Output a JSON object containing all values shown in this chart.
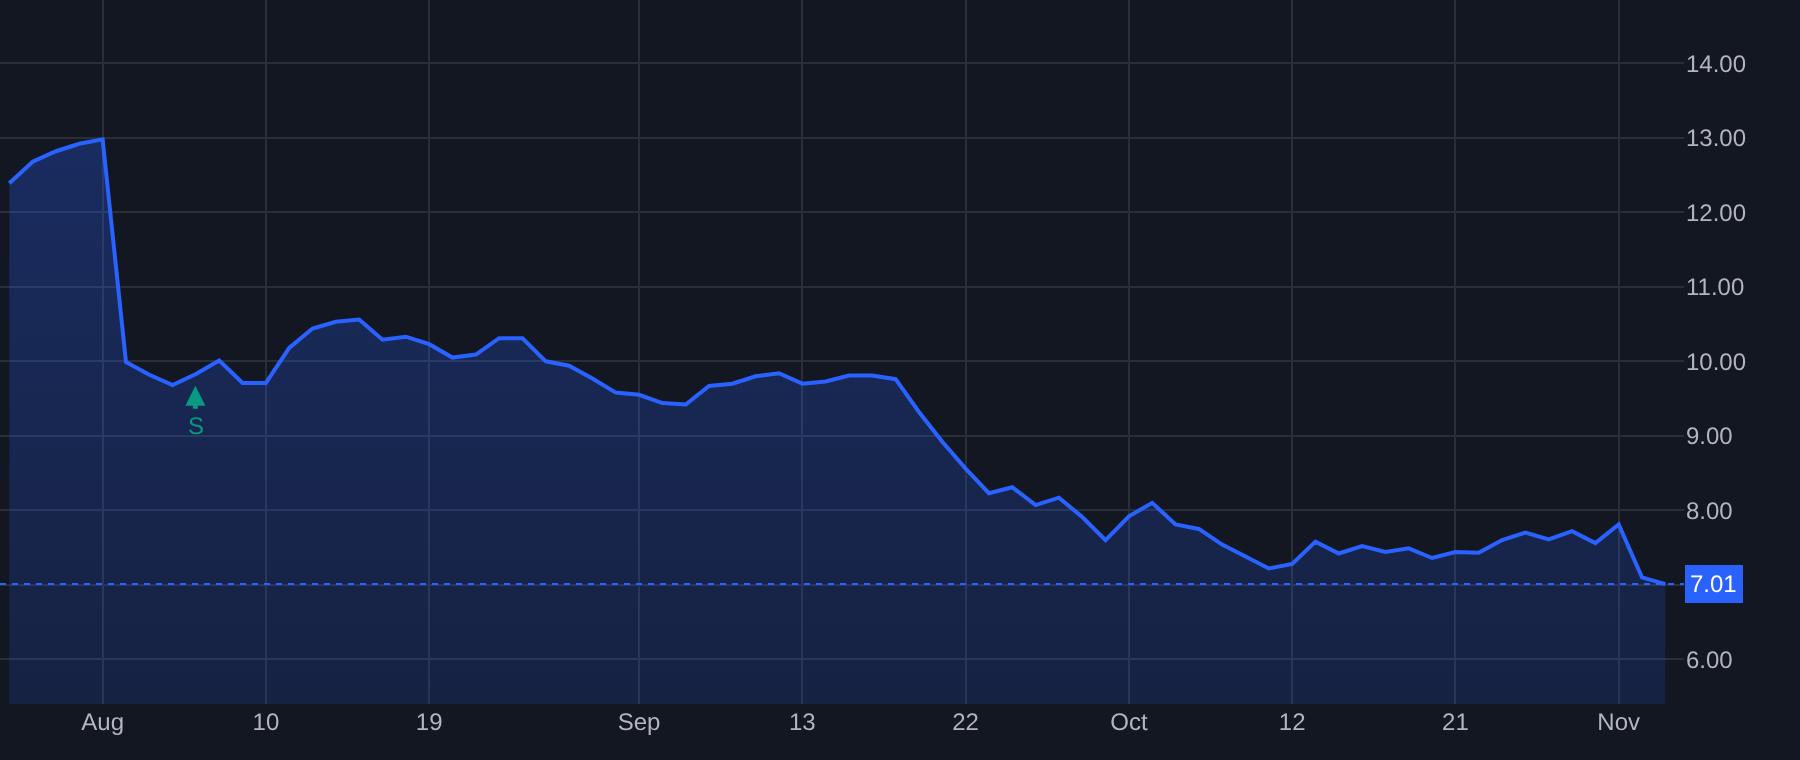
{
  "chart_data": {
    "type": "area",
    "categories": [
      null,
      null,
      null,
      null,
      "Aug",
      null,
      null,
      null,
      null,
      null,
      null,
      "10",
      null,
      null,
      null,
      null,
      null,
      null,
      "19",
      null,
      null,
      null,
      null,
      null,
      null,
      null,
      null,
      "Sep",
      null,
      null,
      null,
      null,
      null,
      null,
      "13",
      null,
      null,
      null,
      null,
      null,
      null,
      "22",
      null,
      null,
      null,
      null,
      null,
      null,
      "Oct",
      null,
      null,
      null,
      null,
      null,
      null,
      "12",
      null,
      null,
      null,
      null,
      null,
      null,
      "21",
      null,
      null,
      null,
      null,
      null,
      null,
      "Nov",
      null,
      null
    ],
    "series": [
      {
        "color": "#2962ff",
        "values": [
          12.39,
          12.68,
          12.82,
          12.92,
          12.98,
          9.99,
          9.82,
          9.68,
          9.83,
          10.01,
          9.71,
          9.71,
          10.18,
          10.44,
          10.53,
          10.56,
          10.29,
          10.33,
          10.23,
          10.05,
          10.09,
          10.31,
          10.31,
          10.0,
          9.94,
          9.77,
          9.58,
          9.55,
          9.44,
          9.42,
          9.67,
          9.7,
          9.8,
          9.84,
          9.7,
          9.73,
          9.81,
          9.81,
          9.76,
          9.32,
          8.92,
          8.56,
          8.23,
          8.31,
          8.07,
          8.17,
          7.91,
          7.6,
          7.92,
          8.1,
          7.81,
          7.75,
          7.54,
          7.38,
          7.22,
          7.28,
          7.58,
          7.42,
          7.52,
          7.44,
          7.49,
          7.36,
          7.44,
          7.43,
          7.6,
          7.7,
          7.61,
          7.72,
          7.56,
          7.81,
          7.1,
          7.01
        ]
      }
    ],
    "ylim": [
      5.4,
      14.85
    ],
    "yticks": [
      {
        "value": 6,
        "label": "6.00"
      },
      {
        "value": 7,
        "label": null
      },
      {
        "value": 8,
        "label": "8.00"
      },
      {
        "value": 9,
        "label": "9.00"
      },
      {
        "value": 10,
        "label": "10.00"
      },
      {
        "value": 11,
        "label": "11.00"
      },
      {
        "value": 12,
        "label": "12.00"
      },
      {
        "value": 13,
        "label": "13.00"
      },
      {
        "value": 14,
        "label": "14.00"
      }
    ],
    "ref_lines": [
      {
        "axis": "y",
        "value": 7.01,
        "label": "7.01",
        "color": "#2962ff",
        "line_style": "dotted"
      }
    ],
    "annotations": [
      "S"
    ],
    "grid": true,
    "marker": "none",
    "line_style": "solid"
  }
}
